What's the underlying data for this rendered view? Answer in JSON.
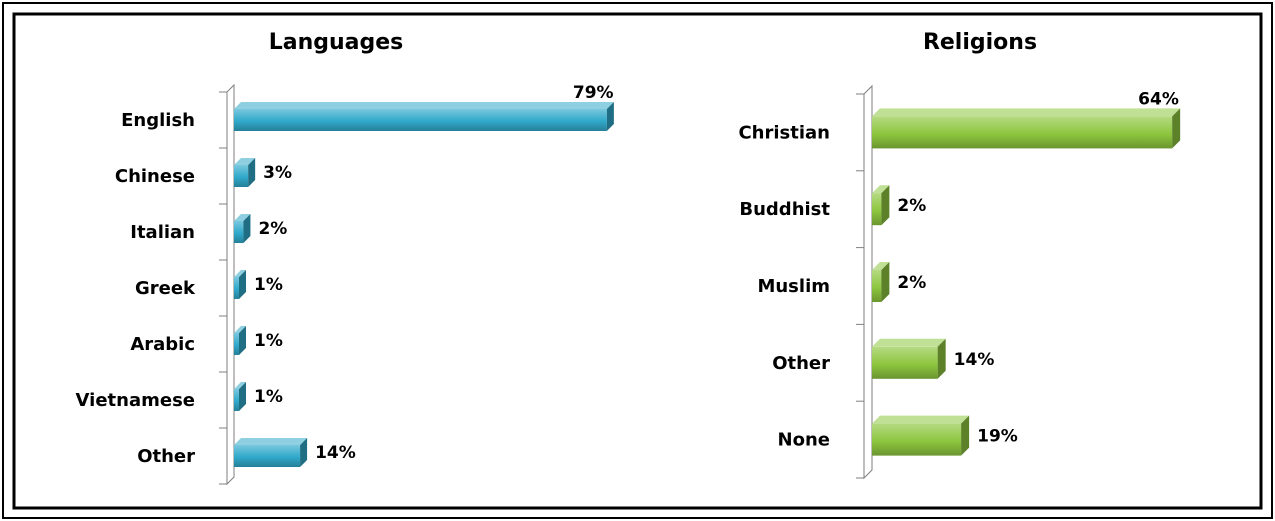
{
  "chart_data": [
    {
      "type": "bar",
      "orientation": "horizontal",
      "title": "Languages",
      "categories": [
        "English",
        "Chinese",
        "Italian",
        "Greek",
        "Arabic",
        "Vietnamese",
        "Other"
      ],
      "values": [
        79,
        3,
        2,
        1,
        1,
        1,
        14
      ],
      "value_labels": [
        "79%",
        "3%",
        "2%",
        "1%",
        "1%",
        "1%",
        "14%"
      ],
      "unit": "%",
      "xlim": [
        0,
        80
      ],
      "grid": false,
      "legend": "none",
      "color": "#31a9cb",
      "style": "3d"
    },
    {
      "type": "bar",
      "orientation": "horizontal",
      "title": "Religions",
      "categories": [
        "Christian",
        "Buddhist",
        "Muslim",
        "Other",
        "None"
      ],
      "values": [
        64,
        2,
        2,
        14,
        19
      ],
      "value_labels": [
        "64%",
        "2%",
        "2%",
        "14%",
        "19%"
      ],
      "unit": "%",
      "xlim": [
        0,
        70
      ],
      "grid": false,
      "legend": "none",
      "color": "#8dc63f",
      "style": "3d"
    }
  ]
}
